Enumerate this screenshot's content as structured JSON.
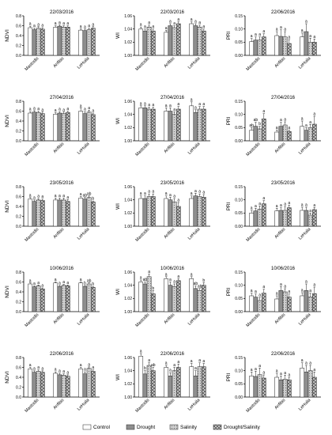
{
  "chart_data": {
    "type": "bar",
    "layout": "grid-5x3",
    "categories": [
      "Mastodis",
      "Anfibis",
      "LeHuila"
    ],
    "legend": [
      "Control",
      "Drought",
      "Salinity",
      "Drought/Salinity"
    ],
    "panels": [
      {
        "date": "22/03/2016",
        "ylabel": "NDVI",
        "ylim": [
          0,
          0.8
        ],
        "yticks": [
          "0.0",
          "0.2",
          "0.4",
          "0.6",
          "0.8"
        ],
        "values": [
          [
            0.56,
            0.52,
            0.55,
            0.53
          ],
          [
            0.57,
            0.59,
            0.57,
            0.57
          ],
          [
            0.51,
            0.5,
            0.52,
            0.55
          ]
        ],
        "errors": [
          [
            0.03,
            0.03,
            0.03,
            0.03
          ],
          [
            0.03,
            0.03,
            0.03,
            0.03
          ],
          [
            0.03,
            0.03,
            0.03,
            0.03
          ]
        ],
        "letters": [
          [
            "a",
            "a",
            "a",
            "a"
          ],
          [
            "a",
            "a",
            "a",
            "a"
          ],
          [
            "a",
            "a",
            "a",
            "a"
          ]
        ]
      },
      {
        "date": "22/03/2016",
        "ylabel": "WI",
        "ylim": [
          1.0,
          1.06
        ],
        "yticks": [
          "1.00",
          "1.02",
          "1.04",
          "1.06"
        ],
        "values": [
          [
            1.04,
            1.037,
            1.043,
            1.037
          ],
          [
            1.035,
            1.045,
            1.042,
            1.048
          ],
          [
            1.048,
            1.045,
            1.043,
            1.037
          ]
        ],
        "errors": [
          [
            0.003,
            0.003,
            0.003,
            0.003
          ],
          [
            0.003,
            0.003,
            0.003,
            0.003
          ],
          [
            0.003,
            0.003,
            0.003,
            0.003
          ]
        ],
        "letters": [
          [
            "a",
            "a",
            "a",
            "a"
          ],
          [
            "a",
            "a",
            "a",
            "a"
          ],
          [
            "a",
            "a",
            "a",
            "a"
          ]
        ]
      },
      {
        "date": "22/06/2016",
        "ylabel": "PRI",
        "ylim": [
          0,
          0.15
        ],
        "yticks": [
          "0.00",
          "0.05",
          "0.10",
          "0.15"
        ],
        "values": [
          [
            0.052,
            0.058,
            0.058,
            0.07
          ],
          [
            0.075,
            0.072,
            0.07,
            0.045
          ],
          [
            0.07,
            0.09,
            0.05,
            0.05
          ]
        ],
        "errors": [
          [
            0.012,
            0.012,
            0.012,
            0.012
          ],
          [
            0.015,
            0.025,
            0.02,
            0.015
          ],
          [
            0.015,
            0.03,
            0.015,
            0.012
          ]
        ],
        "letters": [
          [
            "a",
            "a",
            "a",
            "a"
          ],
          [
            "a",
            "a",
            "a",
            "a"
          ],
          [
            "a",
            "a",
            "a",
            "a"
          ]
        ]
      },
      {
        "date": "27/04/2016",
        "ylabel": "NDVI",
        "ylim": [
          0,
          0.8
        ],
        "yticks": [
          "0.0",
          "0.2",
          "0.4",
          "0.6",
          "0.8"
        ],
        "values": [
          [
            0.56,
            0.58,
            0.57,
            0.55
          ],
          [
            0.54,
            0.56,
            0.55,
            0.57
          ],
          [
            0.6,
            0.55,
            0.58,
            0.53
          ]
        ],
        "errors": [
          [
            0.03,
            0.03,
            0.03,
            0.03
          ],
          [
            0.03,
            0.03,
            0.03,
            0.03
          ],
          [
            0.06,
            0.04,
            0.04,
            0.03
          ]
        ],
        "letters": [
          [
            "a",
            "a",
            "a",
            "a"
          ],
          [
            "a",
            "a",
            "a",
            "a"
          ],
          [
            "a",
            "a",
            "a",
            "a"
          ]
        ]
      },
      {
        "date": "27/04/2016",
        "ylabel": "WI",
        "ylim": [
          1.0,
          1.06
        ],
        "yticks": [
          "1.00",
          "1.02",
          "1.04",
          "1.06"
        ],
        "values": [
          [
            1.05,
            1.05,
            1.048,
            1.048
          ],
          [
            1.045,
            1.045,
            1.04,
            1.048
          ],
          [
            1.053,
            1.043,
            1.048,
            1.048
          ]
        ],
        "errors": [
          [
            0.003,
            0.003,
            0.003,
            0.003
          ],
          [
            0.005,
            0.005,
            0.004,
            0.004
          ],
          [
            0.006,
            0.004,
            0.004,
            0.004
          ]
        ],
        "letters": [
          [
            "a",
            "a",
            "a",
            "a"
          ],
          [
            "a",
            "a",
            "a",
            "a"
          ],
          [
            "a",
            "a",
            "a",
            "a"
          ]
        ]
      },
      {
        "date": "27/04/2016",
        "ylabel": "PRI",
        "ylim": [
          0,
          0.15
        ],
        "yticks": [
          "0.00",
          "0.05",
          "0.10",
          "0.15"
        ],
        "values": [
          [
            0.04,
            0.055,
            0.045,
            0.083
          ],
          [
            0.033,
            0.055,
            0.06,
            0.035
          ],
          [
            0.055,
            0.04,
            0.05,
            0.063
          ]
        ],
        "errors": [
          [
            0.01,
            0.015,
            0.01,
            0.02
          ],
          [
            0.008,
            0.015,
            0.012,
            0.006
          ],
          [
            0.02,
            0.01,
            0.012,
            0.03
          ]
        ],
        "letters": [
          [
            "ab",
            "ab",
            "b",
            "a"
          ],
          [
            "a",
            "a",
            "a",
            "a"
          ],
          [
            "a",
            "a",
            "a",
            "a"
          ]
        ]
      },
      {
        "date": "23/05/2016",
        "ylabel": "NDVI",
        "ylim": [
          0,
          0.8
        ],
        "yticks": [
          "0.0",
          "0.2",
          "0.4",
          "0.6",
          "0.8"
        ],
        "values": [
          [
            0.55,
            0.5,
            0.53,
            0.52
          ],
          [
            0.53,
            0.53,
            0.53,
            0.5
          ],
          [
            0.57,
            0.55,
            0.58,
            0.49
          ]
        ],
        "errors": [
          [
            0.03,
            0.03,
            0.03,
            0.03
          ],
          [
            0.04,
            0.04,
            0.04,
            0.04
          ],
          [
            0.03,
            0.03,
            0.03,
            0.02
          ]
        ],
        "letters": [
          [
            "a",
            "a",
            "a",
            "a"
          ],
          [
            "a",
            "a",
            "a",
            "a"
          ],
          [
            "a",
            "ab",
            "ab",
            "b"
          ]
        ]
      },
      {
        "date": "23/05/2016",
        "ylabel": "WI",
        "ylim": [
          1.0,
          1.06
        ],
        "yticks": [
          "1.00",
          "1.02",
          "1.04",
          "1.06"
        ],
        "values": [
          [
            1.042,
            1.042,
            1.045,
            1.045
          ],
          [
            1.042,
            1.04,
            1.037,
            1.03
          ],
          [
            1.042,
            1.046,
            1.045,
            1.044
          ]
        ],
        "errors": [
          [
            0.004,
            0.004,
            0.004,
            0.004
          ],
          [
            0.004,
            0.004,
            0.005,
            0.006
          ],
          [
            0.004,
            0.004,
            0.004,
            0.004
          ]
        ],
        "letters": [
          [
            "a",
            "a",
            "a",
            "a"
          ],
          [
            "a",
            "a",
            "a",
            "a"
          ],
          [
            "a",
            "a",
            "a",
            "a"
          ]
        ]
      },
      {
        "date": "23/05/2016",
        "ylabel": "PRI",
        "ylim": [
          0,
          0.15
        ],
        "yticks": [
          "0.00",
          "0.05",
          "0.10",
          "0.15"
        ],
        "values": [
          [
            0.05,
            0.058,
            0.065,
            0.085
          ],
          [
            0.058,
            0.06,
            0.06,
            0.07
          ],
          [
            0.06,
            0.06,
            0.042,
            0.063
          ]
        ],
        "errors": [
          [
            0.01,
            0.01,
            0.012,
            0.012
          ],
          [
            0.01,
            0.01,
            0.015,
            0.01
          ],
          [
            0.012,
            0.012,
            0.008,
            0.008
          ]
        ],
        "letters": [
          [
            "a",
            "a",
            "a",
            "a"
          ],
          [
            "a",
            "a",
            "a",
            "a"
          ],
          [
            "a",
            "a",
            "a",
            "a"
          ]
        ]
      },
      {
        "date": "10/06/2016",
        "ylabel": "NDVI",
        "ylim": [
          0,
          0.8
        ],
        "yticks": [
          "0.0",
          "0.2",
          "0.4",
          "0.6",
          "0.8"
        ],
        "values": [
          [
            0.56,
            0.5,
            0.52,
            0.46
          ],
          [
            0.58,
            0.51,
            0.53,
            0.52
          ],
          [
            0.58,
            0.51,
            0.56,
            0.49
          ]
        ],
        "errors": [
          [
            0.02,
            0.02,
            0.02,
            0.02
          ],
          [
            0.02,
            0.02,
            0.02,
            0.02
          ],
          [
            0.02,
            0.02,
            0.02,
            0.02
          ]
        ],
        "letters": [
          [
            "a",
            "a",
            "a",
            "a"
          ],
          [
            "a",
            "a",
            "a",
            "a"
          ],
          [
            "a",
            "b",
            "ab",
            "b"
          ]
        ]
      },
      {
        "date": "10/06/2016",
        "ylabel": "WI",
        "ylim": [
          1.0,
          1.06
        ],
        "yticks": [
          "1.00",
          "1.02",
          "1.04",
          "1.06"
        ],
        "values": [
          [
            1.045,
            1.042,
            1.053,
            1.027
          ],
          [
            1.05,
            1.04,
            1.038,
            1.047
          ],
          [
            1.05,
            1.035,
            1.032,
            1.04
          ]
        ],
        "errors": [
          [
            0.003,
            0.003,
            0.004,
            0.005
          ],
          [
            0.003,
            0.005,
            0.004,
            0.003
          ],
          [
            0.003,
            0.004,
            0.003,
            0.004
          ]
        ],
        "letters": [
          [
            "a",
            "ab",
            "a",
            "b"
          ],
          [
            "a",
            "a",
            "a",
            "a"
          ],
          [
            "a",
            "ab",
            "ab",
            "b"
          ]
        ]
      },
      {
        "date": "10/06/2016",
        "ylabel": "PRI",
        "ylim": [
          0,
          0.15
        ],
        "yticks": [
          "0.00",
          "0.05",
          "0.10",
          "0.15"
        ],
        "values": [
          [
            0.06,
            0.055,
            0.042,
            0.07
          ],
          [
            0.048,
            0.08,
            0.075,
            0.055
          ],
          [
            0.06,
            0.08,
            0.055,
            0.068
          ]
        ],
        "errors": [
          [
            0.01,
            0.012,
            0.012,
            0.015
          ],
          [
            0.012,
            0.015,
            0.012,
            0.012
          ],
          [
            0.012,
            0.025,
            0.015,
            0.025
          ]
        ],
        "letters": [
          [
            "a",
            "a",
            "a",
            "a"
          ],
          [
            "a",
            "a",
            "a",
            "a"
          ],
          [
            "a",
            "a",
            "a",
            "a"
          ]
        ]
      },
      {
        "date": "22/06/2016",
        "ylabel": "NDVI",
        "ylim": [
          0,
          0.8
        ],
        "yticks": [
          "0.0",
          "0.2",
          "0.4",
          "0.6",
          "0.8"
        ],
        "values": [
          [
            0.57,
            0.5,
            0.52,
            0.5
          ],
          [
            0.48,
            0.45,
            0.44,
            0.42
          ],
          [
            0.57,
            0.47,
            0.58,
            0.52
          ]
        ],
        "errors": [
          [
            0.03,
            0.03,
            0.03,
            0.03
          ],
          [
            0.03,
            0.03,
            0.03,
            0.03
          ],
          [
            0.03,
            0.04,
            0.03,
            0.03
          ]
        ],
        "letters": [
          [
            "a",
            "a",
            "a",
            "a"
          ],
          [
            "a",
            "a",
            "a",
            "a"
          ],
          [
            "a",
            "a",
            "a",
            "a"
          ]
        ]
      },
      {
        "date": "22/06/2016",
        "ylabel": "WI",
        "ylim": [
          1.0,
          1.06
        ],
        "yticks": [
          "1.00",
          "1.02",
          "1.04",
          "1.06"
        ],
        "values": [
          [
            1.062,
            1.035,
            1.048,
            1.04
          ],
          [
            1.045,
            1.032,
            1.04,
            1.045
          ],
          [
            1.046,
            1.032,
            1.046,
            1.046
          ]
        ],
        "errors": [
          [
            0.004,
            0.005,
            0.004,
            0.005
          ],
          [
            0.003,
            0.005,
            0.005,
            0.005
          ],
          [
            0.005,
            0.008,
            0.006,
            0.005
          ]
        ],
        "letters": [
          [
            "a",
            "b",
            "a",
            "ab"
          ],
          [
            "a",
            "a",
            "a",
            "a"
          ],
          [
            "a",
            "a",
            "a",
            "a"
          ]
        ]
      },
      {
        "date": "22/06/2016",
        "ylabel": "PRI",
        "ylim": [
          0,
          0.15
        ],
        "yticks": [
          "0.00",
          "0.05",
          "0.10",
          "0.15"
        ],
        "values": [
          [
            0.08,
            0.078,
            0.085,
            0.072
          ],
          [
            0.075,
            0.065,
            0.068,
            0.065
          ],
          [
            0.11,
            0.095,
            0.1,
            0.075
          ]
        ],
        "errors": [
          [
            0.015,
            0.02,
            0.025,
            0.012
          ],
          [
            0.015,
            0.015,
            0.015,
            0.01
          ],
          [
            0.02,
            0.025,
            0.02,
            0.02
          ]
        ],
        "letters": [
          [
            "a",
            "a",
            "a",
            "a"
          ],
          [
            "a",
            "a",
            "a",
            "a"
          ],
          [
            "a",
            "a",
            "a",
            "a"
          ]
        ]
      }
    ]
  }
}
